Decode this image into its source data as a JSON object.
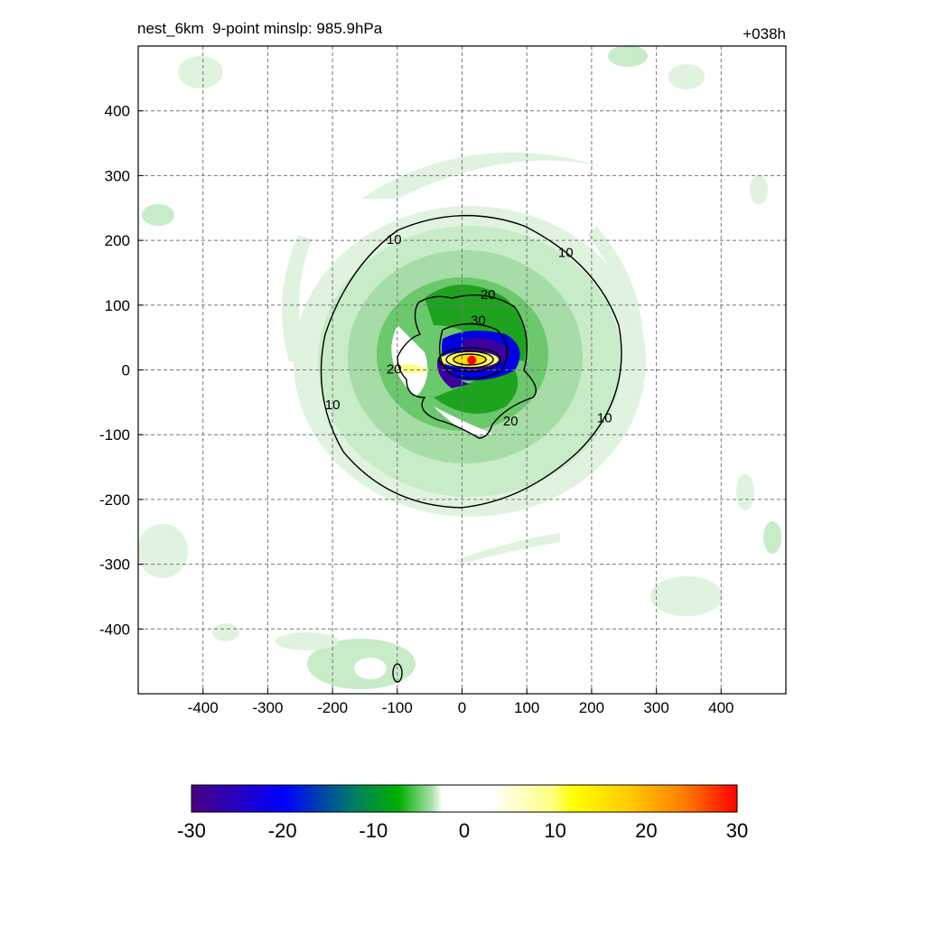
{
  "header": {
    "title_left": "nest_6km  9-point minslp: 985.9hPa",
    "title_right": "+038h"
  },
  "chart_data": {
    "type": "heatmap",
    "title": "nest_6km  9-point minslp: 985.9hPa",
    "subtitle": "+038h",
    "xlabel": "",
    "ylabel": "",
    "xlim": [
      -500,
      500
    ],
    "ylim": [
      -500,
      500
    ],
    "x_ticks": [
      -400,
      -300,
      -200,
      -100,
      0,
      100,
      200,
      300,
      400
    ],
    "y_ticks": [
      400,
      300,
      200,
      100,
      0,
      -100,
      -200,
      -300,
      -400
    ],
    "grid": true,
    "colorbar": {
      "range": [
        -30,
        30
      ],
      "tick_labels": [
        "-30",
        "-20",
        "-10",
        "0",
        "10",
        "20",
        "30"
      ],
      "tick_values": [
        -30,
        -20,
        -10,
        0,
        10,
        20,
        30
      ],
      "colors": [
        "#4b0082",
        "#0000ff",
        "#00a000",
        "#ffffff",
        "#ffff00",
        "#ffa500",
        "#ff0000"
      ]
    },
    "contour_labels": [
      {
        "text": "10",
        "x": -105,
        "y": 200
      },
      {
        "text": "10",
        "x": 160,
        "y": 180
      },
      {
        "text": "10",
        "x": -200,
        "y": -55
      },
      {
        "text": "10",
        "x": 220,
        "y": -75
      },
      {
        "text": "20",
        "x": 40,
        "y": 115
      },
      {
        "text": "20",
        "x": -105,
        "y": 0
      },
      {
        "text": "20",
        "x": 75,
        "y": -80
      },
      {
        "text": "30",
        "x": 25,
        "y": 75
      }
    ],
    "storm_center": {
      "x": 15,
      "y": 15
    }
  }
}
